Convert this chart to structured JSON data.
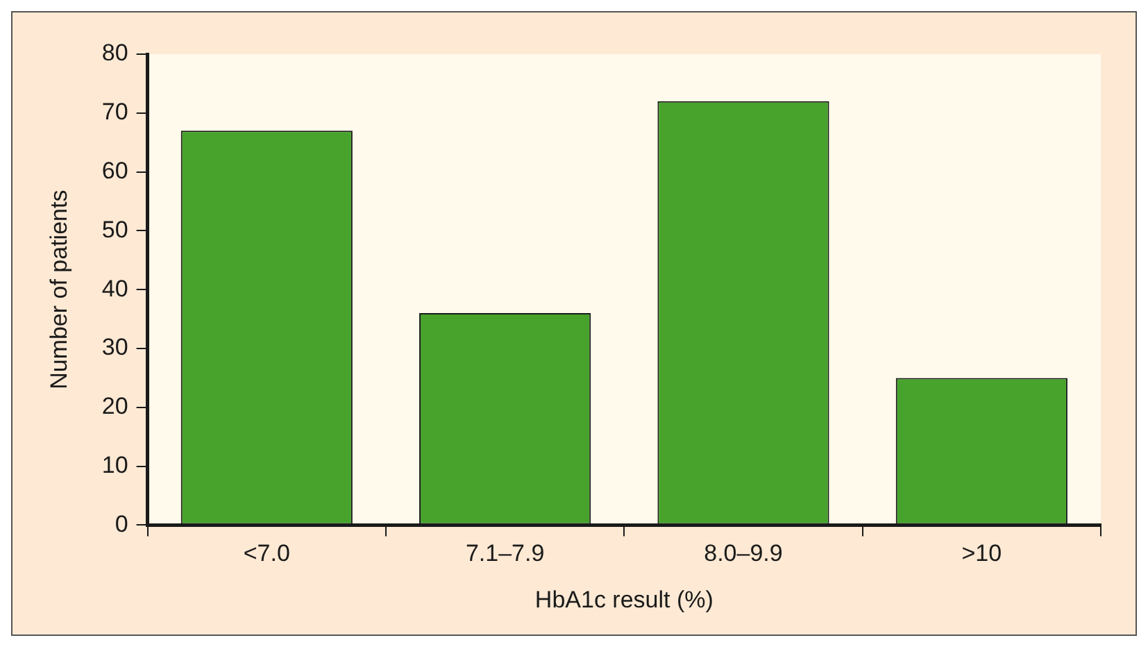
{
  "chart_data": {
    "type": "bar",
    "xlabel": "HbA1c result (%)",
    "ylabel": "Number of patients",
    "categories": [
      "<7.0",
      "7.1–7.9",
      "8.0–9.9",
      ">10"
    ],
    "values": [
      67,
      36,
      72,
      25
    ],
    "color": "#47a32c",
    "ylim": [
      0,
      80
    ],
    "yticks": [
      0,
      10,
      20,
      30,
      40,
      50,
      60,
      70,
      80
    ],
    "grid": false,
    "legend": false
  }
}
